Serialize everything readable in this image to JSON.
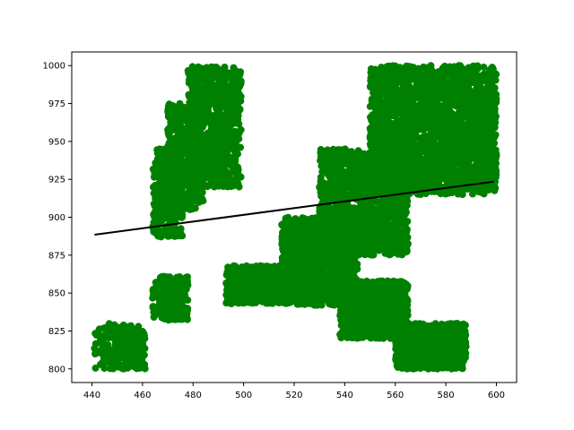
{
  "chart_data": {
    "type": "scatter",
    "title": "",
    "xlabel": "",
    "ylabel": "",
    "xlim": [
      432,
      608
    ],
    "ylim": [
      791,
      1009
    ],
    "xticks": [
      440,
      460,
      480,
      500,
      520,
      540,
      560,
      580,
      600
    ],
    "yticks": [
      800,
      825,
      850,
      875,
      900,
      925,
      950,
      975,
      1000
    ],
    "grid": false,
    "legend": "none",
    "series": [
      {
        "kind": "scatter",
        "color": "#008000",
        "marker": "circle",
        "clusters": [
          {
            "x": [
              441,
              461
            ],
            "y": [
              800,
              830
            ],
            "density": 220
          },
          {
            "x": [
              464,
              478
            ],
            "y": [
              832,
              861
            ],
            "density": 220
          },
          {
            "x": [
              464,
              476
            ],
            "y": [
              887,
              945
            ],
            "density": 320
          },
          {
            "x": [
              470,
              484
            ],
            "y": [
              905,
              975
            ],
            "density": 450
          },
          {
            "x": [
              478,
              499
            ],
            "y": [
              920,
              1000
            ],
            "density": 700
          },
          {
            "x": [
              485,
              496
            ],
            "y": [
              945,
              956
            ],
            "density": 120
          },
          {
            "x": [
              493,
              520
            ],
            "y": [
              843,
              868
            ],
            "density": 700
          },
          {
            "x": [
              515,
              545
            ],
            "y": [
              842,
              900
            ],
            "density": 1100
          },
          {
            "x": [
              530,
              565
            ],
            "y": [
              875,
              945
            ],
            "density": 1300
          },
          {
            "x": [
              550,
              600
            ],
            "y": [
              915,
              1000
            ],
            "density": 2200
          },
          {
            "x": [
              538,
              565
            ],
            "y": [
              820,
              858
            ],
            "density": 900
          },
          {
            "x": [
              560,
              588
            ],
            "y": [
              800,
              830
            ],
            "density": 900
          }
        ]
      },
      {
        "kind": "line",
        "color": "#000000",
        "x": [
          441,
          599
        ],
        "y": [
          888.5,
          923.5
        ]
      }
    ]
  }
}
